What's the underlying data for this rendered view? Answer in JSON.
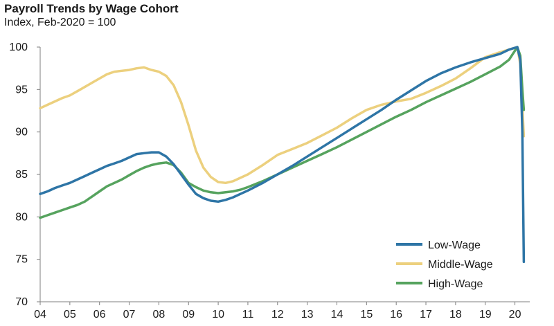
{
  "chart_data": {
    "type": "line",
    "title": "Payroll Trends by Wage Cohort",
    "subtitle": "Index, Feb-2020 = 100",
    "xlabel": "",
    "ylabel": "",
    "xlim": [
      2004.0,
      2020.5
    ],
    "ylim": [
      70,
      100
    ],
    "x_ticks": [
      {
        "label": "04",
        "value": 2004
      },
      {
        "label": "05",
        "value": 2005
      },
      {
        "label": "06",
        "value": 2006
      },
      {
        "label": "07",
        "value": 2007
      },
      {
        "label": "08",
        "value": 2008
      },
      {
        "label": "09",
        "value": 2009
      },
      {
        "label": "10",
        "value": 2010
      },
      {
        "label": "11",
        "value": 2011
      },
      {
        "label": "12",
        "value": 2012
      },
      {
        "label": "13",
        "value": 2013
      },
      {
        "label": "14",
        "value": 2014
      },
      {
        "label": "15",
        "value": 2015
      },
      {
        "label": "16",
        "value": 2016
      },
      {
        "label": "17",
        "value": 2017
      },
      {
        "label": "18",
        "value": 2018
      },
      {
        "label": "19",
        "value": 2019
      },
      {
        "label": "20",
        "value": 2020
      }
    ],
    "y_ticks": [
      70,
      75,
      80,
      85,
      90,
      95,
      100
    ],
    "grid": false,
    "legend_position": "bottom-right",
    "series": [
      {
        "name": "Low-Wage",
        "color": "#2e75a6",
        "points": [
          [
            2004.0,
            82.7
          ],
          [
            2004.25,
            83.0
          ],
          [
            2004.5,
            83.4
          ],
          [
            2004.75,
            83.7
          ],
          [
            2005.0,
            84.0
          ],
          [
            2005.25,
            84.4
          ],
          [
            2005.5,
            84.8
          ],
          [
            2005.75,
            85.2
          ],
          [
            2006.0,
            85.6
          ],
          [
            2006.25,
            86.0
          ],
          [
            2006.5,
            86.3
          ],
          [
            2006.75,
            86.6
          ],
          [
            2007.0,
            87.0
          ],
          [
            2007.25,
            87.4
          ],
          [
            2007.5,
            87.5
          ],
          [
            2007.75,
            87.6
          ],
          [
            2008.0,
            87.6
          ],
          [
            2008.25,
            87.1
          ],
          [
            2008.5,
            86.2
          ],
          [
            2008.75,
            85.0
          ],
          [
            2009.0,
            83.8
          ],
          [
            2009.25,
            82.7
          ],
          [
            2009.5,
            82.2
          ],
          [
            2009.75,
            81.9
          ],
          [
            2010.0,
            81.8
          ],
          [
            2010.25,
            82.0
          ],
          [
            2010.5,
            82.3
          ],
          [
            2010.75,
            82.7
          ],
          [
            2011.0,
            83.1
          ],
          [
            2011.5,
            84.0
          ],
          [
            2012.0,
            85.0
          ],
          [
            2012.5,
            86.0
          ],
          [
            2013.0,
            87.1
          ],
          [
            2013.5,
            88.2
          ],
          [
            2014.0,
            89.3
          ],
          [
            2014.5,
            90.4
          ],
          [
            2015.0,
            91.5
          ],
          [
            2015.5,
            92.6
          ],
          [
            2016.0,
            93.8
          ],
          [
            2016.5,
            94.9
          ],
          [
            2017.0,
            96.0
          ],
          [
            2017.5,
            96.9
          ],
          [
            2018.0,
            97.6
          ],
          [
            2018.5,
            98.2
          ],
          [
            2019.0,
            98.7
          ],
          [
            2019.5,
            99.2
          ],
          [
            2019.8,
            99.7
          ],
          [
            2020.08,
            100.0
          ],
          [
            2020.18,
            98.5
          ],
          [
            2020.25,
            90.0
          ],
          [
            2020.3,
            74.7
          ]
        ]
      },
      {
        "name": "Middle-Wage",
        "color": "#ecd07e",
        "points": [
          [
            2004.0,
            92.8
          ],
          [
            2004.25,
            93.2
          ],
          [
            2004.5,
            93.6
          ],
          [
            2004.75,
            94.0
          ],
          [
            2005.0,
            94.3
          ],
          [
            2005.25,
            94.8
          ],
          [
            2005.5,
            95.3
          ],
          [
            2005.75,
            95.8
          ],
          [
            2006.0,
            96.3
          ],
          [
            2006.25,
            96.8
          ],
          [
            2006.5,
            97.1
          ],
          [
            2006.75,
            97.2
          ],
          [
            2007.0,
            97.3
          ],
          [
            2007.25,
            97.5
          ],
          [
            2007.5,
            97.6
          ],
          [
            2007.75,
            97.3
          ],
          [
            2008.0,
            97.1
          ],
          [
            2008.25,
            96.6
          ],
          [
            2008.5,
            95.5
          ],
          [
            2008.75,
            93.5
          ],
          [
            2009.0,
            90.8
          ],
          [
            2009.25,
            87.8
          ],
          [
            2009.5,
            85.8
          ],
          [
            2009.75,
            84.7
          ],
          [
            2010.0,
            84.1
          ],
          [
            2010.25,
            84.0
          ],
          [
            2010.5,
            84.2
          ],
          [
            2010.75,
            84.6
          ],
          [
            2011.0,
            85.0
          ],
          [
            2011.5,
            86.1
          ],
          [
            2012.0,
            87.3
          ],
          [
            2012.5,
            88.0
          ],
          [
            2013.0,
            88.7
          ],
          [
            2013.5,
            89.6
          ],
          [
            2014.0,
            90.5
          ],
          [
            2014.5,
            91.6
          ],
          [
            2015.0,
            92.6
          ],
          [
            2015.5,
            93.2
          ],
          [
            2016.0,
            93.6
          ],
          [
            2016.5,
            93.9
          ],
          [
            2017.0,
            94.6
          ],
          [
            2017.5,
            95.4
          ],
          [
            2018.0,
            96.3
          ],
          [
            2018.5,
            97.5
          ],
          [
            2019.0,
            98.8
          ],
          [
            2019.5,
            99.4
          ],
          [
            2019.8,
            99.7
          ],
          [
            2020.08,
            100.0
          ],
          [
            2020.18,
            98.0
          ],
          [
            2020.25,
            93.0
          ],
          [
            2020.3,
            89.5
          ]
        ]
      },
      {
        "name": "High-Wage",
        "color": "#56a35e",
        "points": [
          [
            2004.0,
            79.9
          ],
          [
            2004.25,
            80.2
          ],
          [
            2004.5,
            80.5
          ],
          [
            2004.75,
            80.8
          ],
          [
            2005.0,
            81.1
          ],
          [
            2005.25,
            81.4
          ],
          [
            2005.5,
            81.8
          ],
          [
            2005.75,
            82.4
          ],
          [
            2006.0,
            83.0
          ],
          [
            2006.25,
            83.6
          ],
          [
            2006.5,
            84.0
          ],
          [
            2006.75,
            84.4
          ],
          [
            2007.0,
            84.9
          ],
          [
            2007.25,
            85.4
          ],
          [
            2007.5,
            85.8
          ],
          [
            2007.75,
            86.1
          ],
          [
            2008.0,
            86.3
          ],
          [
            2008.25,
            86.4
          ],
          [
            2008.5,
            86.1
          ],
          [
            2008.75,
            85.2
          ],
          [
            2009.0,
            84.0
          ],
          [
            2009.25,
            83.5
          ],
          [
            2009.5,
            83.1
          ],
          [
            2009.75,
            82.9
          ],
          [
            2010.0,
            82.8
          ],
          [
            2010.25,
            82.9
          ],
          [
            2010.5,
            83.0
          ],
          [
            2010.75,
            83.2
          ],
          [
            2011.0,
            83.5
          ],
          [
            2011.5,
            84.2
          ],
          [
            2012.0,
            85.0
          ],
          [
            2012.5,
            85.8
          ],
          [
            2013.0,
            86.6
          ],
          [
            2013.5,
            87.4
          ],
          [
            2014.0,
            88.2
          ],
          [
            2014.5,
            89.1
          ],
          [
            2015.0,
            90.0
          ],
          [
            2015.5,
            90.9
          ],
          [
            2016.0,
            91.8
          ],
          [
            2016.5,
            92.6
          ],
          [
            2017.0,
            93.5
          ],
          [
            2017.5,
            94.3
          ],
          [
            2018.0,
            95.1
          ],
          [
            2018.5,
            95.9
          ],
          [
            2019.0,
            96.8
          ],
          [
            2019.5,
            97.7
          ],
          [
            2019.8,
            98.5
          ],
          [
            2020.08,
            100.0
          ],
          [
            2020.18,
            99.0
          ],
          [
            2020.25,
            95.0
          ],
          [
            2020.3,
            92.6
          ]
        ]
      }
    ]
  }
}
